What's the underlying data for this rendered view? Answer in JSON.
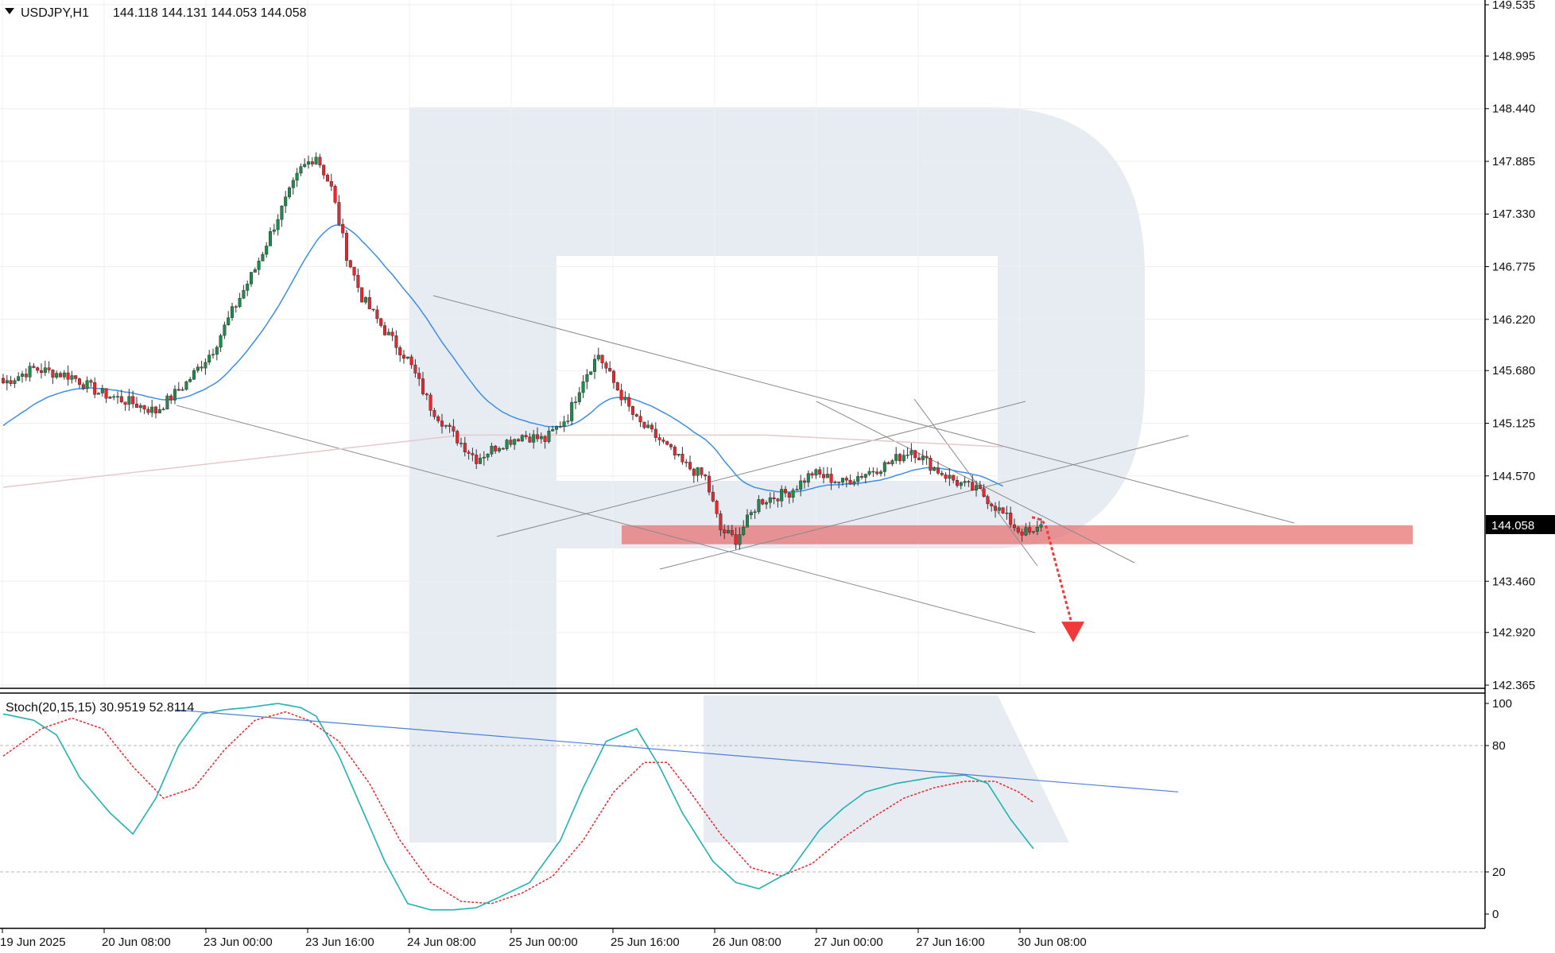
{
  "header": {
    "symbol": "USDJPY,H1",
    "ohlc": "144.118 144.131 144.053 144.058"
  },
  "stoch_header": {
    "label": "Stoch(20,15,15) 30.9519 52.8114"
  },
  "colors": {
    "bull": "#1f8a4c",
    "bear": "#e8262d",
    "ma_fast": "#3d8ee6",
    "ma_slow": "#e6c9cc",
    "stoch_main": "#22b2b2",
    "stoch_signal": "#e8262d",
    "support_zone": "#e57373",
    "trendline": "#8a8a8a",
    "watermark": "#dfe5ef"
  },
  "chart_data": [
    {
      "type": "candlestick",
      "name": "USDJPY,H1",
      "ylim": [
        142.365,
        149.535
      ],
      "y_ticks": [
        "149.535",
        "148.995",
        "148.440",
        "147.885",
        "147.330",
        "146.775",
        "146.220",
        "145.680",
        "145.125",
        "144.570",
        "143.460",
        "142.920",
        "142.365"
      ],
      "current_price": "144.058",
      "x_ticks": [
        "19 Jun 2025",
        "20 Jun 08:00",
        "23 Jun 00:00",
        "23 Jun 16:00",
        "24 Jun 08:00",
        "25 Jun 00:00",
        "25 Jun 16:00",
        "26 Jun 08:00",
        "27 Jun 00:00",
        "27 Jun 16:00",
        "30 Jun 08:00"
      ],
      "close_path": [
        [
          0,
          145.55
        ],
        [
          8,
          145.7
        ],
        [
          18,
          145.62
        ],
        [
          25,
          145.45
        ],
        [
          33,
          145.35
        ],
        [
          40,
          145.25
        ],
        [
          48,
          145.55
        ],
        [
          55,
          145.9
        ],
        [
          60,
          146.3
        ],
        [
          66,
          146.75
        ],
        [
          72,
          147.3
        ],
        [
          78,
          147.8
        ],
        [
          82,
          147.95
        ],
        [
          86,
          147.6
        ],
        [
          90,
          146.9
        ],
        [
          94,
          146.45
        ],
        [
          100,
          146.1
        ],
        [
          106,
          145.8
        ],
        [
          112,
          145.3
        ],
        [
          118,
          145.0
        ],
        [
          124,
          144.75
        ],
        [
          130,
          144.9
        ],
        [
          136,
          145.0
        ],
        [
          142,
          144.95
        ],
        [
          148,
          145.2
        ],
        [
          152,
          145.6
        ],
        [
          156,
          145.85
        ],
        [
          160,
          145.55
        ],
        [
          166,
          145.15
        ],
        [
          172,
          144.95
        ],
        [
          178,
          144.7
        ],
        [
          184,
          144.55
        ],
        [
          188,
          144.0
        ],
        [
          192,
          143.9
        ],
        [
          198,
          144.3
        ],
        [
          206,
          144.4
        ],
        [
          212,
          144.6
        ],
        [
          220,
          144.5
        ],
        [
          226,
          144.6
        ],
        [
          232,
          144.7
        ],
        [
          238,
          144.85
        ],
        [
          244,
          144.65
        ],
        [
          250,
          144.5
        ],
        [
          256,
          144.4
        ],
        [
          260,
          144.25
        ],
        [
          266,
          144.0
        ],
        [
          270,
          143.95
        ],
        [
          272,
          144.06
        ]
      ],
      "candle_count": 273,
      "overlays": [
        {
          "name": "MA fast",
          "values_ref": "colors.ma_fast"
        },
        {
          "name": "MA slow",
          "values_ref": "colors.ma_slow"
        }
      ],
      "support_zone": [
        143.85,
        144.05
      ],
      "projection": {
        "from": 144.05,
        "to": 142.85
      }
    },
    {
      "type": "line",
      "name": "Stoch(20,15,15)",
      "ylim": [
        0,
        100
      ],
      "levels": [
        80,
        20
      ],
      "y_ticks": [
        "100",
        "80",
        "20",
        "0"
      ],
      "main_last": 30.9519,
      "signal_last": 52.8114,
      "main_path": [
        [
          0,
          95
        ],
        [
          8,
          92
        ],
        [
          14,
          85
        ],
        [
          20,
          65
        ],
        [
          28,
          48
        ],
        [
          34,
          38
        ],
        [
          40,
          55
        ],
        [
          46,
          80
        ],
        [
          52,
          95
        ],
        [
          58,
          97
        ],
        [
          64,
          98
        ],
        [
          72,
          100
        ],
        [
          78,
          98
        ],
        [
          82,
          94
        ],
        [
          88,
          75
        ],
        [
          94,
          50
        ],
        [
          100,
          25
        ],
        [
          106,
          5
        ],
        [
          112,
          2
        ],
        [
          118,
          2
        ],
        [
          124,
          3
        ],
        [
          130,
          8
        ],
        [
          138,
          15
        ],
        [
          146,
          35
        ],
        [
          152,
          60
        ],
        [
          158,
          82
        ],
        [
          166,
          88
        ],
        [
          172,
          70
        ],
        [
          178,
          48
        ],
        [
          186,
          25
        ],
        [
          192,
          15
        ],
        [
          198,
          12
        ],
        [
          206,
          20
        ],
        [
          214,
          40
        ],
        [
          220,
          50
        ],
        [
          226,
          58
        ],
        [
          234,
          62
        ],
        [
          244,
          65
        ],
        [
          252,
          66
        ],
        [
          258,
          62
        ],
        [
          264,
          45
        ],
        [
          270,
          31
        ]
      ],
      "signal_path": [
        [
          0,
          75
        ],
        [
          10,
          88
        ],
        [
          18,
          93
        ],
        [
          26,
          88
        ],
        [
          34,
          70
        ],
        [
          42,
          55
        ],
        [
          50,
          60
        ],
        [
          58,
          78
        ],
        [
          66,
          92
        ],
        [
          74,
          96
        ],
        [
          80,
          92
        ],
        [
          88,
          82
        ],
        [
          96,
          62
        ],
        [
          104,
          35
        ],
        [
          112,
          15
        ],
        [
          120,
          6
        ],
        [
          128,
          5
        ],
        [
          136,
          10
        ],
        [
          144,
          18
        ],
        [
          152,
          35
        ],
        [
          160,
          58
        ],
        [
          168,
          72
        ],
        [
          174,
          72
        ],
        [
          180,
          58
        ],
        [
          188,
          38
        ],
        [
          196,
          22
        ],
        [
          204,
          18
        ],
        [
          212,
          24
        ],
        [
          220,
          36
        ],
        [
          228,
          46
        ],
        [
          236,
          55
        ],
        [
          244,
          60
        ],
        [
          252,
          63
        ],
        [
          260,
          63
        ],
        [
          266,
          58
        ],
        [
          270,
          53
        ]
      ],
      "trendline": {
        "from_value": 97,
        "to_value": 58
      }
    }
  ]
}
